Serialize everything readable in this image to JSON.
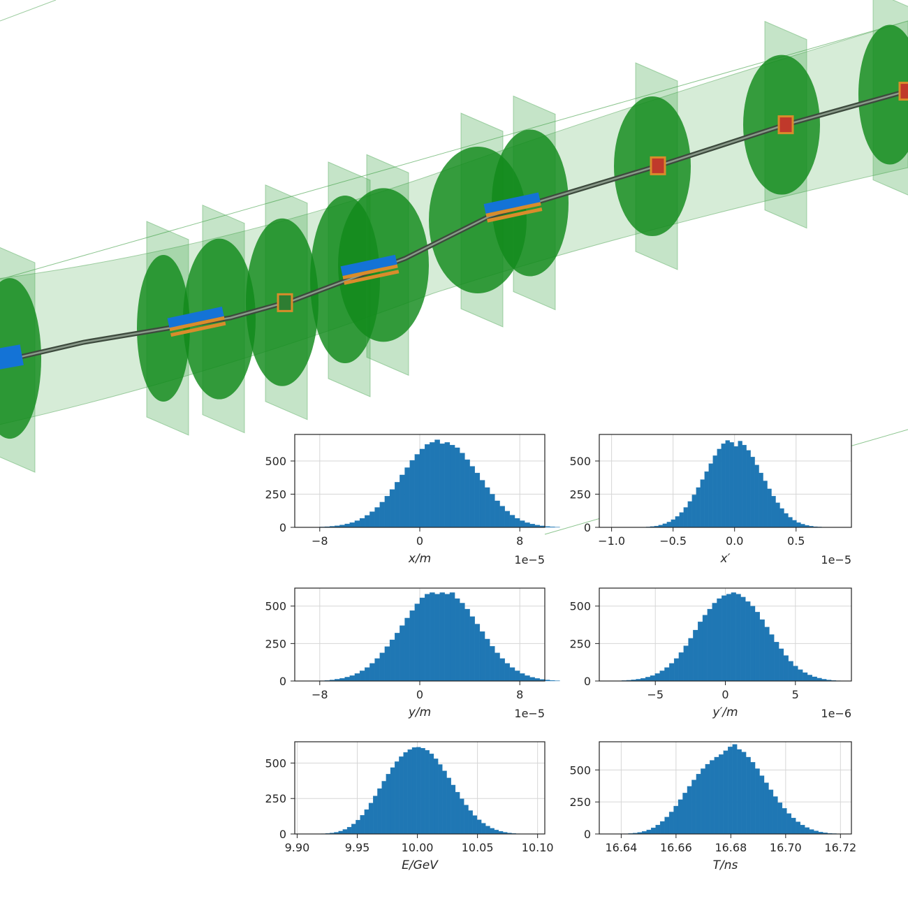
{
  "colors": {
    "bar": "#1f77b4",
    "slab": "#2e9e3a",
    "disk": "#118a1b",
    "tube": "#c8e6c9",
    "magnet_blue": "#1473d6",
    "magnet_orange": "#d98c2b",
    "magnet_red": "#c0392b"
  },
  "chart_data": [
    {
      "type": "bar",
      "xlabel": "x/m",
      "offset": "1e−5",
      "xlim": [
        -10,
        10
      ],
      "ylim": [
        0,
        700
      ],
      "xticks": [
        -8,
        0,
        8
      ],
      "xtick_labels": [
        "−8",
        "0",
        "8"
      ],
      "yticks": [
        0,
        250,
        500
      ],
      "bins": {
        "start": -8,
        "width": 0.4,
        "counts": [
          3,
          5,
          8,
          12,
          18,
          26,
          36,
          50,
          68,
          90,
          118,
          150,
          190,
          235,
          285,
          340,
          395,
          450,
          505,
          550,
          590,
          625,
          640,
          660,
          630,
          640,
          620,
          600,
          560,
          510,
          460,
          410,
          355,
          300,
          250,
          200,
          160,
          122,
          92,
          68,
          50,
          35,
          25,
          17,
          11,
          7,
          4,
          2
        ]
      }
    },
    {
      "type": "bar",
      "xlabel": "x′",
      "offset": "1e−5",
      "xlim": [
        -1.1,
        0.95
      ],
      "ylim": [
        0,
        700
      ],
      "xticks": [
        -1.0,
        -0.5,
        0.0,
        0.5
      ],
      "xtick_labels": [
        "−1.0",
        "−0.5",
        "0.0",
        "0.5"
      ],
      "yticks": [
        0,
        250,
        500
      ],
      "bins": {
        "start": -0.72,
        "width": 0.034,
        "counts": [
          3,
          6,
          10,
          17,
          27,
          40,
          58,
          82,
          112,
          150,
          195,
          245,
          300,
          360,
          420,
          480,
          540,
          590,
          630,
          655,
          640,
          610,
          650,
          620,
          580,
          530,
          470,
          410,
          350,
          290,
          235,
          185,
          142,
          105,
          76,
          53,
          36,
          24,
          15,
          9,
          5,
          3
        ]
      }
    },
    {
      "type": "bar",
      "xlabel": "y/m",
      "offset": "1e−5",
      "xlim": [
        -10,
        10
      ],
      "ylim": [
        0,
        620
      ],
      "xticks": [
        -8,
        0,
        8
      ],
      "xtick_labels": [
        "−8",
        "0",
        "8"
      ],
      "yticks": [
        0,
        250,
        500
      ],
      "bins": {
        "start": -8,
        "width": 0.4,
        "counts": [
          2,
          4,
          7,
          12,
          18,
          26,
          36,
          50,
          68,
          90,
          118,
          150,
          188,
          230,
          275,
          320,
          370,
          420,
          470,
          515,
          555,
          580,
          590,
          580,
          590,
          580,
          590,
          550,
          520,
          480,
          430,
          380,
          330,
          280,
          232,
          188,
          150,
          118,
          90,
          68,
          50,
          36,
          25,
          17,
          11,
          7,
          4,
          2
        ]
      }
    },
    {
      "type": "bar",
      "xlabel": "y′/m",
      "offset": "1e−6",
      "xlim": [
        -9,
        9
      ],
      "ylim": [
        0,
        620
      ],
      "xticks": [
        -5,
        0,
        5
      ],
      "xtick_labels": [
        "−5",
        "0",
        "5"
      ],
      "yticks": [
        0,
        250,
        500
      ],
      "bins": {
        "start": -7.4,
        "width": 0.34,
        "counts": [
          3,
          5,
          8,
          12,
          18,
          26,
          36,
          50,
          68,
          90,
          118,
          150,
          190,
          235,
          285,
          340,
          395,
          440,
          480,
          520,
          550,
          570,
          580,
          590,
          580,
          560,
          530,
          500,
          460,
          410,
          360,
          310,
          260,
          215,
          170,
          132,
          100,
          76,
          56,
          40,
          28,
          19,
          12,
          7,
          4,
          2
        ]
      }
    },
    {
      "type": "bar",
      "xlabel": "E/GeV",
      "offset": "",
      "xlim": [
        9.898,
        10.106
      ],
      "ylim": [
        0,
        650
      ],
      "xticks": [
        9.9,
        9.95,
        10.0,
        10.05,
        10.1
      ],
      "xtick_labels": [
        "9.90",
        "9.95",
        "10.00",
        "10.05",
        "10.10"
      ],
      "yticks": [
        0,
        250,
        500
      ],
      "bins": {
        "start": 9.92,
        "width": 0.0036,
        "counts": [
          2,
          4,
          7,
          12,
          20,
          32,
          48,
          70,
          98,
          132,
          172,
          218,
          268,
          320,
          372,
          422,
          468,
          510,
          545,
          575,
          595,
          610,
          612,
          605,
          590,
          565,
          530,
          490,
          445,
          395,
          345,
          295,
          248,
          204,
          165,
          130,
          100,
          76,
          56,
          40,
          28,
          19,
          12,
          7,
          4,
          2
        ]
      }
    },
    {
      "type": "bar",
      "xlabel": "T/ns",
      "offset": "",
      "xlim": [
        16.632,
        16.724
      ],
      "ylim": [
        0,
        720
      ],
      "xticks": [
        16.64,
        16.66,
        16.68,
        16.7,
        16.72
      ],
      "xtick_labels": [
        "16.64",
        "16.66",
        "16.68",
        "16.70",
        "16.72"
      ],
      "yticks": [
        0,
        250,
        500
      ],
      "bins": {
        "start": 16.641,
        "width": 0.00165,
        "counts": [
          2,
          4,
          7,
          12,
          20,
          32,
          48,
          70,
          98,
          132,
          172,
          218,
          268,
          320,
          372,
          422,
          468,
          510,
          545,
          575,
          600,
          620,
          650,
          680,
          700,
          660,
          640,
          600,
          560,
          510,
          455,
          400,
          345,
          292,
          244,
          200,
          160,
          125,
          95,
          70,
          50,
          35,
          24,
          15,
          9,
          5,
          3
        ]
      }
    }
  ]
}
